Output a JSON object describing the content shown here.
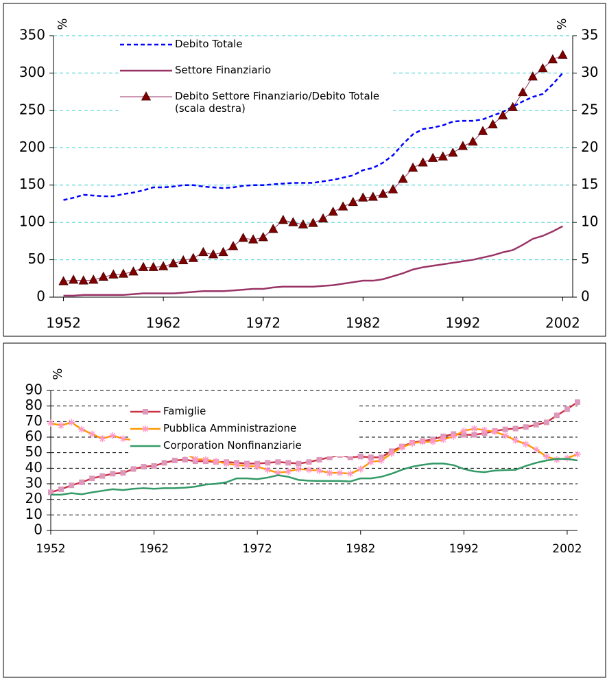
{
  "chart_data": [
    {
      "type": "line",
      "ylabel": "%",
      "y2label": "%",
      "x": [
        1952,
        1953,
        1954,
        1955,
        1956,
        1957,
        1958,
        1959,
        1960,
        1961,
        1962,
        1963,
        1964,
        1965,
        1966,
        1967,
        1968,
        1969,
        1970,
        1971,
        1972,
        1973,
        1974,
        1975,
        1976,
        1977,
        1978,
        1979,
        1980,
        1981,
        1982,
        1983,
        1984,
        1985,
        1986,
        1987,
        1988,
        1989,
        1990,
        1991,
        1992,
        1993,
        1994,
        1995,
        1996,
        1997,
        1998,
        1999,
        2000,
        2001,
        2002
      ],
      "series": [
        {
          "name": "Debito Totale",
          "color": "#0000ff",
          "dash": true,
          "values": [
            130,
            133,
            137,
            136,
            135,
            135,
            138,
            140,
            143,
            147,
            147,
            148,
            150,
            150,
            148,
            147,
            146,
            147,
            149,
            150,
            150,
            151,
            152,
            153,
            153,
            153,
            155,
            157,
            160,
            163,
            170,
            173,
            180,
            190,
            205,
            218,
            225,
            227,
            230,
            235,
            236,
            236,
            238,
            243,
            248,
            255,
            262,
            268,
            272,
            285,
            300
          ]
        },
        {
          "name": "Settore Finanziario",
          "color": "#993366",
          "dash": false,
          "values": [
            2,
            2,
            3,
            3,
            3,
            3,
            3,
            4,
            5,
            5,
            5,
            5,
            6,
            7,
            8,
            8,
            8,
            9,
            10,
            11,
            11,
            13,
            14,
            14,
            14,
            14,
            15,
            16,
            18,
            20,
            22,
            22,
            24,
            28,
            32,
            37,
            40,
            42,
            44,
            46,
            48,
            50,
            53,
            56,
            60,
            63,
            70,
            78,
            82,
            88,
            95
          ]
        },
        {
          "name": "Debito Settore Finanziario/Debito Totale (scala destra)",
          "color": "#993366",
          "marker": "triangle",
          "marker_color": "#800000",
          "axis": "y2",
          "values": [
            2.1,
            2.3,
            2.2,
            2.3,
            2.7,
            3.0,
            3.1,
            3.4,
            4.0,
            4.0,
            4.1,
            4.5,
            4.9,
            5.2,
            6.0,
            5.7,
            6.0,
            6.8,
            7.9,
            7.7,
            8.0,
            9.1,
            10.3,
            10.0,
            9.7,
            9.9,
            10.5,
            11.4,
            12.1,
            12.7,
            13.3,
            13.4,
            13.8,
            14.4,
            15.8,
            17.3,
            18.0,
            18.6,
            18.8,
            19.3,
            20.2,
            20.8,
            22.2,
            23.1,
            24.3,
            25.4,
            27.4,
            29.5,
            30.6,
            31.8,
            32.4
          ]
        }
      ],
      "xlim": [
        1951,
        2003
      ],
      "xticks": [
        1952,
        1962,
        1972,
        1982,
        1992,
        2002
      ],
      "ylim": [
        0,
        350
      ],
      "yticks": [
        0,
        50,
        100,
        150,
        200,
        250,
        300,
        350
      ],
      "y2lim": [
        0,
        35
      ],
      "y2ticks": [
        0,
        5,
        10,
        15,
        20,
        25,
        30,
        35
      ],
      "grid": true,
      "grid_color": "#33cccc"
    },
    {
      "type": "line",
      "ylabel": "%",
      "x": [
        1952,
        1953,
        1954,
        1955,
        1956,
        1957,
        1958,
        1959,
        1960,
        1961,
        1962,
        1963,
        1964,
        1965,
        1966,
        1967,
        1968,
        1969,
        1970,
        1971,
        1972,
        1973,
        1974,
        1975,
        1976,
        1977,
        1978,
        1979,
        1980,
        1981,
        1982,
        1983,
        1984,
        1985,
        1986,
        1987,
        1988,
        1989,
        1990,
        1991,
        1992,
        1993,
        1994,
        1995,
        1996,
        1997,
        1998,
        1999,
        2000,
        2001,
        2002,
        2003
      ],
      "series": [
        {
          "name": "Famiglie",
          "color": "#cc3344",
          "marker": "square",
          "marker_color": "#dd99bb",
          "values": [
            24.5,
            26.5,
            29,
            31,
            33.5,
            35,
            36.5,
            37,
            39.5,
            41,
            41.5,
            43.5,
            45,
            45.5,
            44.5,
            44.5,
            44,
            44,
            43.5,
            43,
            43,
            43.5,
            44,
            43.5,
            43,
            44,
            45.5,
            47,
            48.5,
            47,
            47.5,
            47,
            47,
            51,
            54,
            56.5,
            57.5,
            58.5,
            60.5,
            62,
            61.5,
            61.5,
            62.5,
            64,
            65,
            65.5,
            66.5,
            68,
            69.5,
            74,
            78,
            82.5
          ]
        },
        {
          "name": "Pubblica Amministrazione",
          "color": "#ff9900",
          "marker": "star",
          "marker_color": "#ff99cc",
          "values": [
            69,
            67.5,
            69.5,
            65,
            62,
            59,
            61,
            59,
            58,
            57.5,
            55.5,
            54.5,
            52.5,
            49.5,
            46,
            45.5,
            44.5,
            43,
            42,
            41.5,
            41,
            39,
            37,
            38,
            39.5,
            39,
            38.5,
            37,
            37,
            36.5,
            39.5,
            44,
            45,
            49.5,
            53.5,
            56,
            57,
            57,
            58.5,
            60.5,
            64,
            65.5,
            64.5,
            63.5,
            61,
            58,
            55.5,
            52,
            47.5,
            45.5,
            46.5,
            49
          ]
        },
        {
          "name": "Corporation Nonfinanziarie",
          "color": "#339966",
          "values": [
            23,
            23,
            24,
            23.3,
            24.5,
            25.5,
            26.5,
            26,
            26.8,
            27.2,
            26.8,
            27.2,
            27.2,
            27.5,
            28.2,
            29.5,
            30,
            31,
            33.5,
            33.5,
            33,
            34,
            35.5,
            34.5,
            32.5,
            32,
            31.8,
            31.8,
            31.8,
            31.5,
            33.5,
            33.5,
            34.5,
            36.5,
            39,
            41,
            42.2,
            43,
            43,
            42,
            39.5,
            38,
            37.5,
            38.5,
            38.8,
            39,
            41.5,
            43.5,
            45,
            46,
            46,
            45
          ]
        }
      ],
      "xlim": [
        1952,
        2003
      ],
      "xticks": [
        1952,
        1962,
        1972,
        1982,
        1992,
        2002
      ],
      "ylim": [
        0,
        90
      ],
      "yticks": [
        0,
        10,
        20,
        30,
        40,
        50,
        60,
        70,
        80,
        90
      ],
      "grid": true,
      "grid_color": "#000000"
    }
  ]
}
